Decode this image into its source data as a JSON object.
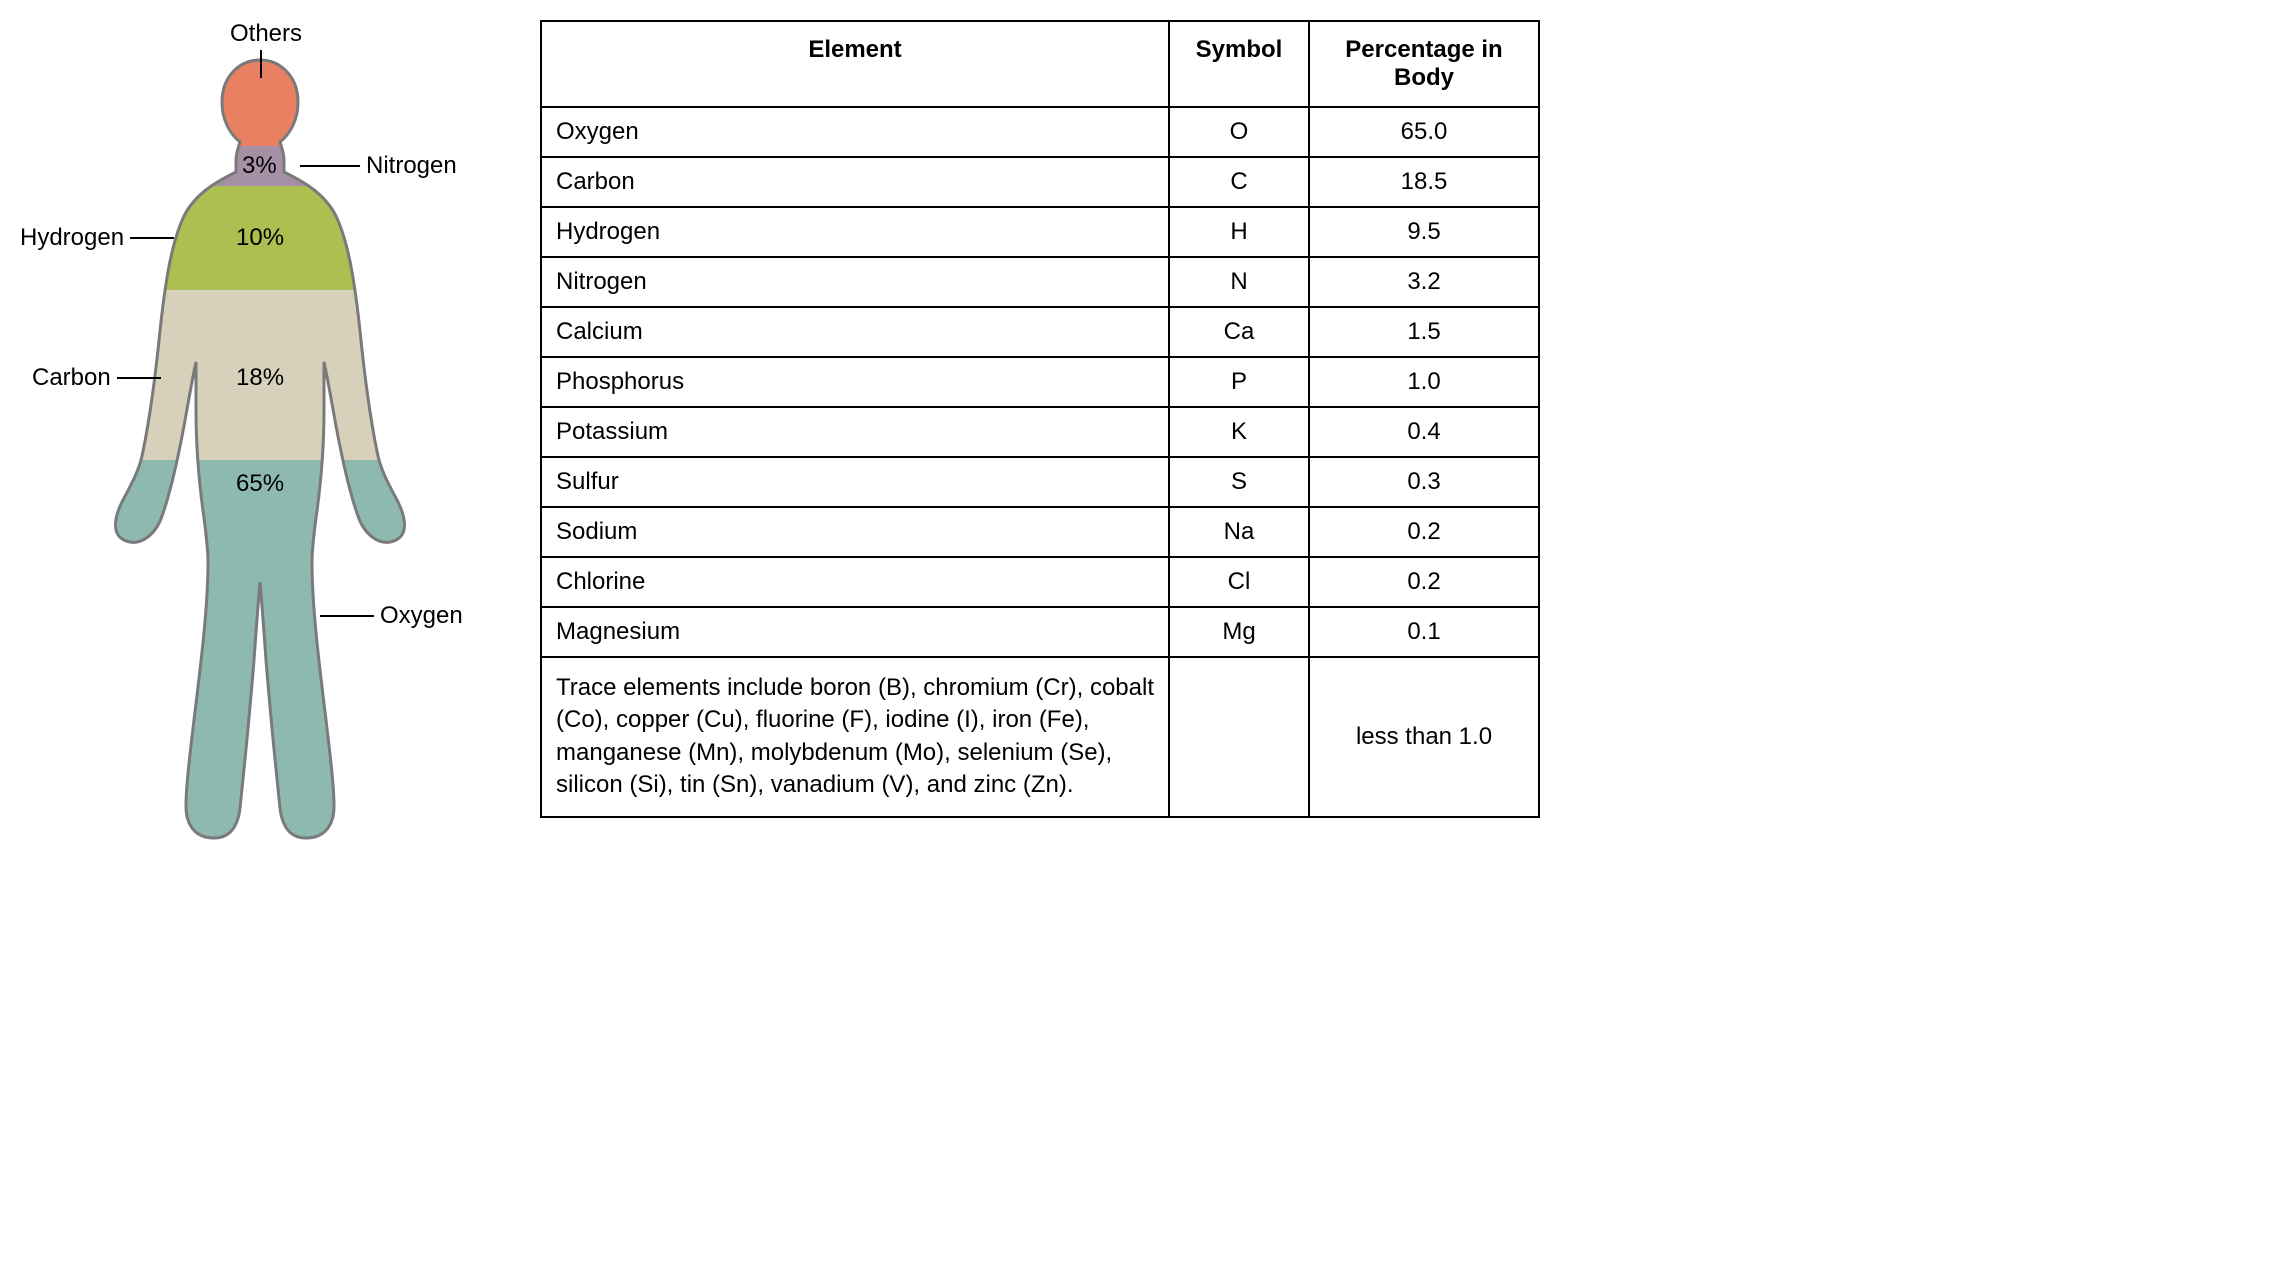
{
  "figure": {
    "outline_color": "#7a7a7a",
    "outline_width": 3,
    "regions": {
      "others": {
        "label": "Others",
        "color": "#e98061"
      },
      "nitrogen": {
        "label": "Nitrogen",
        "percent": "3%",
        "color": "#a690a6"
      },
      "hydrogen": {
        "label": "Hydrogen",
        "percent": "10%",
        "color": "#aebf51"
      },
      "carbon": {
        "label": "Carbon",
        "percent": "18%",
        "color": "#d7d1bb"
      },
      "oxygen": {
        "label": "Oxygen",
        "percent": "65%",
        "color": "#8eb9b1"
      }
    }
  },
  "table": {
    "headers": {
      "element": "Element",
      "symbol": "Symbol",
      "percent": "Percentage in Body"
    },
    "rows": [
      {
        "element": "Oxygen",
        "symbol": "O",
        "percent": "65.0"
      },
      {
        "element": "Carbon",
        "symbol": "C",
        "percent": "18.5"
      },
      {
        "element": "Hydrogen",
        "symbol": "H",
        "percent": "9.5"
      },
      {
        "element": "Nitrogen",
        "symbol": "N",
        "percent": "3.2"
      },
      {
        "element": "Calcium",
        "symbol": "Ca",
        "percent": "1.5"
      },
      {
        "element": "Phosphorus",
        "symbol": "P",
        "percent": "1.0"
      },
      {
        "element": "Potassium",
        "symbol": "K",
        "percent": "0.4"
      },
      {
        "element": "Sulfur",
        "symbol": "S",
        "percent": "0.3"
      },
      {
        "element": "Sodium",
        "symbol": "Na",
        "percent": "0.2"
      },
      {
        "element": "Chlorine",
        "symbol": "Cl",
        "percent": "0.2"
      },
      {
        "element": "Magnesium",
        "symbol": "Mg",
        "percent": "0.1"
      }
    ],
    "trace": {
      "text": "Trace elements include boron (B), chromium (Cr), cobalt (Co), copper (Cu), fluorine (F), iodine (I), iron (Fe), manganese (Mn), molybdenum (Mo), selenium (Se), silicon (Si), tin (Sn), vanadium (V), and zinc (Zn).",
      "symbol": "",
      "percent": "less than 1.0"
    }
  },
  "typography": {
    "font_family": "Arial",
    "body_fontsize": 24,
    "header_fontweight": "bold"
  },
  "colors": {
    "background": "#ffffff",
    "text": "#000000",
    "border": "#000000"
  }
}
